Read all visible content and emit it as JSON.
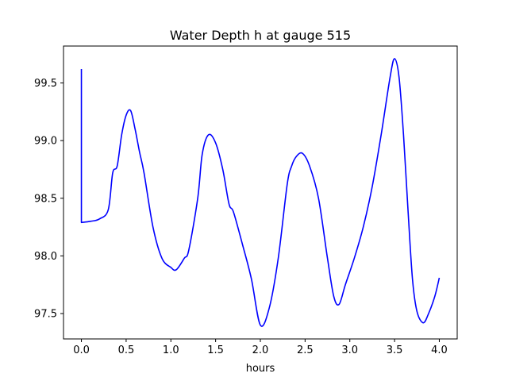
{
  "chart_data": {
    "type": "line",
    "title": "Water Depth h at gauge 515",
    "xlabel": "hours",
    "ylabel": "",
    "xlim": [
      -0.2,
      4.2
    ],
    "ylim": [
      97.28,
      99.82
    ],
    "xticks": [
      0.0,
      0.5,
      1.0,
      1.5,
      2.0,
      2.5,
      3.0,
      3.5,
      4.0
    ],
    "xtick_labels": [
      "0.0",
      "0.5",
      "1.0",
      "1.5",
      "2.0",
      "2.5",
      "3.0",
      "3.5",
      "4.0"
    ],
    "yticks": [
      97.5,
      98.0,
      98.5,
      99.0,
      99.5
    ],
    "ytick_labels": [
      "97.5",
      "98.0",
      "98.5",
      "99.0",
      "99.5"
    ],
    "grid": false,
    "series": [
      {
        "color": "#0000ff",
        "x": [
          0.0,
          0.0,
          0.1,
          0.2,
          0.3,
          0.35,
          0.4,
          0.45,
          0.5,
          0.55,
          0.6,
          0.65,
          0.7,
          0.8,
          0.9,
          1.0,
          1.06,
          1.15,
          1.2,
          1.3,
          1.35,
          1.42,
          1.5,
          1.58,
          1.65,
          1.7,
          1.8,
          1.9,
          2.0,
          2.1,
          2.2,
          2.3,
          2.35,
          2.4,
          2.47,
          2.55,
          2.65,
          2.75,
          2.82,
          2.88,
          2.95,
          3.05,
          3.15,
          3.25,
          3.35,
          3.45,
          3.5,
          3.55,
          3.6,
          3.65,
          3.7,
          3.75,
          3.82,
          3.88,
          3.95,
          4.0
        ],
        "y": [
          99.62,
          98.29,
          98.3,
          98.32,
          98.4,
          98.72,
          98.78,
          99.05,
          99.22,
          99.26,
          99.1,
          98.9,
          98.72,
          98.25,
          97.98,
          97.9,
          97.88,
          97.98,
          98.05,
          98.5,
          98.88,
          99.05,
          98.98,
          98.75,
          98.45,
          98.38,
          98.1,
          97.8,
          97.4,
          97.55,
          97.98,
          98.62,
          98.78,
          98.86,
          98.89,
          98.78,
          98.5,
          97.98,
          97.65,
          97.58,
          97.75,
          97.98,
          98.25,
          98.6,
          99.05,
          99.55,
          99.71,
          99.55,
          99.05,
          98.4,
          97.8,
          97.52,
          97.42,
          97.5,
          97.65,
          97.81
        ]
      }
    ]
  }
}
